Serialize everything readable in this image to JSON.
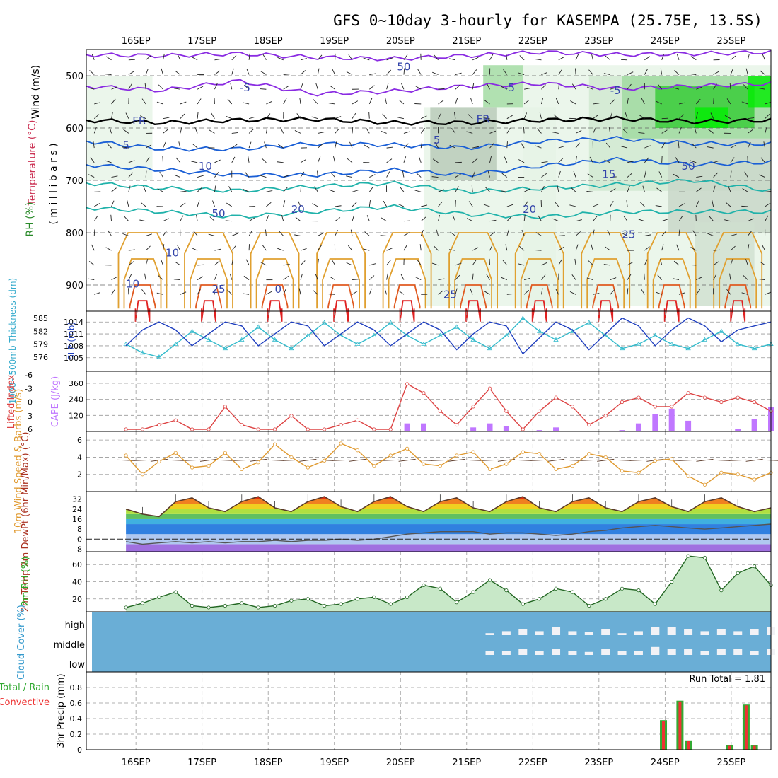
{
  "title": "GFS 0~10day 3-hourly for KASEMPA (25.75E, 13.5S)",
  "dates": [
    "16SEP",
    "17SEP",
    "18SEP",
    "19SEP",
    "20SEP",
    "21SEP",
    "22SEP",
    "23SEP",
    "24SEP",
    "25SEP"
  ],
  "colors": {
    "rh_light": "#e6f4e6",
    "rh_mid": "#9ed99e",
    "rh_strong": "#33cc33",
    "rh_max": "#00ee00",
    "temp_cold": "#8a2be2",
    "temp_blue": "#1a5fd6",
    "temp_teal": "#20b2aa",
    "temp_warm": "#e0a030",
    "temp_hot": "#e02020",
    "slp": "#1f3fbf",
    "thickness": "#33bbcc",
    "cape": "#c077ff",
    "li": "#dd4444",
    "wind": "#e09a30",
    "cloud": "#6aaed6",
    "precip_total": "#33aa33",
    "precip_conv": "#ee3333"
  },
  "chart_data": [
    {
      "type": "heatmap",
      "panel": "upper-air",
      "labels": {
        "wind": "Wind (m/s)",
        "temperature": "Temperature (°C)",
        "rh": "RH (%)",
        "yunit": "( m i l l i b a r s )"
      },
      "y_ticks": [
        500,
        600,
        700,
        800,
        900
      ],
      "ylim": [
        450,
        950
      ],
      "contour_labels": [
        "-5",
        "-5",
        "-5",
        "FR",
        "FR",
        "5",
        "5",
        "10",
        "15",
        "20",
        "20",
        "25",
        "25",
        "25",
        "0",
        "10",
        "10",
        "50",
        "50",
        "50"
      ],
      "temperature_levels": [
        {
          "value": -10,
          "y_mb": [
            460,
            462,
            458,
            465,
            468,
            462,
            455,
            460,
            458,
            455
          ]
        },
        {
          "value": -5,
          "y_mb": [
            520,
            528,
            510,
            535,
            530,
            520,
            515,
            525,
            520,
            515
          ]
        },
        {
          "value": 0,
          "y_mb": [
            585,
            590,
            585,
            583,
            590,
            590,
            585,
            582,
            588,
            585
          ]
        },
        {
          "value": 5,
          "y_mb": [
            625,
            640,
            640,
            630,
            632,
            638,
            625,
            620,
            630,
            630
          ]
        },
        {
          "value": 10,
          "y_mb": [
            670,
            680,
            690,
            690,
            680,
            690,
            672,
            660,
            670,
            665
          ]
        },
        {
          "value": 15,
          "y_mb": [
            705,
            715,
            720,
            712,
            705,
            722,
            715,
            708,
            700,
            720
          ]
        },
        {
          "value": 20,
          "y_mb": [
            752,
            760,
            770,
            760,
            750,
            765,
            770,
            760,
            760,
            760
          ]
        }
      ]
    },
    {
      "type": "line",
      "panel": "slp-thickness",
      "ylabel_left": "1000~500mb Thickness (dm)",
      "ylabel_right": "SLP (mb)",
      "thickness_ticks": [
        576,
        579,
        582,
        585
      ],
      "slp_ticks": [
        1005,
        1008,
        1011,
        1014
      ],
      "x_days": [
        0,
        0.25,
        0.5,
        0.75,
        1,
        1.25,
        1.5,
        1.75,
        2,
        2.25,
        2.5,
        2.75,
        3,
        3.25,
        3.5,
        3.75,
        4,
        4.25,
        4.5,
        4.75,
        5,
        5.25,
        5.5,
        5.75,
        6,
        6.25,
        6.5,
        6.75,
        7,
        7.25,
        7.5,
        7.75,
        8,
        8.25,
        8.5,
        8.75,
        9,
        9.25,
        9.5,
        9.75
      ],
      "series": [
        {
          "name": "SLP (mb)",
          "values": [
            1008,
            1012,
            1014,
            1012,
            1008,
            1011,
            1014,
            1013,
            1008,
            1011,
            1014,
            1013,
            1008,
            1011,
            1014,
            1012,
            1008,
            1011,
            1014,
            1012,
            1007,
            1011,
            1014,
            1013,
            1006,
            1010,
            1014,
            1012,
            1007,
            1011,
            1015,
            1013,
            1008,
            1012,
            1015,
            1013,
            1009,
            1012,
            1013,
            1014
          ]
        },
        {
          "name": "1000~500mb Thickness (dm)",
          "values": [
            579,
            577,
            576,
            579,
            582,
            580,
            578,
            580,
            583,
            580,
            578,
            581,
            584,
            581,
            579,
            581,
            584,
            581,
            579,
            581,
            583,
            580,
            578,
            581,
            585,
            582,
            580,
            582,
            584,
            581,
            578,
            579,
            581,
            579,
            578,
            580,
            582,
            579,
            578,
            579
          ]
        }
      ]
    },
    {
      "type": "bar",
      "panel": "cape-li",
      "ylabel_left": "Lifted Index",
      "ylabel_right": "CAPE (J/kg)",
      "li_ticks": [
        "-6",
        "-3",
        "0",
        "3",
        "6"
      ],
      "cape_ticks": [
        120,
        240,
        360
      ],
      "x_days": [
        0,
        0.25,
        0.5,
        0.75,
        1,
        1.25,
        1.5,
        1.75,
        2,
        2.25,
        2.5,
        2.75,
        3,
        3.25,
        3.5,
        3.75,
        4,
        4.25,
        4.5,
        4.75,
        5,
        5.25,
        5.5,
        5.75,
        6,
        6.25,
        6.5,
        6.75,
        7,
        7.25,
        7.5,
        7.75,
        8,
        8.25,
        8.5,
        8.75,
        9,
        9.25,
        9.5,
        9.75
      ],
      "series": [
        {
          "name": "CAPE (J/kg)",
          "values": [
            0,
            0,
            0,
            0,
            0,
            0,
            0,
            0,
            0,
            0,
            0,
            0,
            0,
            0,
            0,
            0,
            0,
            60,
            60,
            0,
            0,
            30,
            60,
            40,
            0,
            10,
            30,
            0,
            0,
            0,
            10,
            60,
            130,
            170,
            80,
            0,
            0,
            20,
            90,
            180
          ]
        },
        {
          "name": "Lifted Index",
          "values": [
            6,
            6,
            5,
            4,
            6,
            6,
            1,
            5,
            6,
            6,
            3,
            6,
            6,
            5,
            4,
            6,
            6,
            -4,
            -2,
            2,
            5,
            1,
            -3,
            2,
            6,
            2,
            -1,
            1,
            5,
            3,
            0,
            -1,
            1,
            1,
            -2,
            -1,
            0,
            -1,
            0,
            2
          ]
        }
      ]
    },
    {
      "type": "line",
      "panel": "wind10m",
      "ylabel": "10m Wind Speed & Barbs (m/s)",
      "ticks": [
        2,
        4,
        6
      ],
      "ylim": [
        0,
        7
      ],
      "x_days": [
        0,
        0.25,
        0.5,
        0.75,
        1,
        1.25,
        1.5,
        1.75,
        2,
        2.25,
        2.5,
        2.75,
        3,
        3.25,
        3.5,
        3.75,
        4,
        4.25,
        4.5,
        4.75,
        5,
        5.25,
        5.5,
        5.75,
        6,
        6.25,
        6.5,
        6.75,
        7,
        7.25,
        7.5,
        7.75,
        8,
        8.25,
        8.5,
        8.75,
        9,
        9.25,
        9.5,
        9.75
      ],
      "series": [
        {
          "name": "10m Wind Speed",
          "values": [
            4.2,
            2.0,
            3.5,
            4.5,
            2.8,
            3.0,
            4.5,
            2.6,
            3.4,
            5.5,
            4.0,
            2.8,
            3.6,
            5.6,
            4.8,
            3.0,
            4.2,
            5.0,
            3.2,
            3.0,
            4.2,
            4.6,
            2.6,
            3.2,
            4.6,
            4.4,
            2.6,
            3.0,
            4.4,
            4.0,
            2.4,
            2.2,
            3.6,
            3.8,
            1.8,
            0.8,
            2.2,
            2.0,
            1.4,
            2.2
          ]
        }
      ]
    },
    {
      "type": "area",
      "panel": "temp2m",
      "ylabel": "2m Temp 2m DewPt (6hr Min/Max) (°C)",
      "ticks": [
        -8,
        0,
        8,
        16,
        24,
        32
      ],
      "ylim": [
        -10,
        38
      ],
      "x_days": [
        0,
        0.25,
        0.5,
        0.75,
        1,
        1.25,
        1.5,
        1.75,
        2,
        2.25,
        2.5,
        2.75,
        3,
        3.25,
        3.5,
        3.75,
        4,
        4.25,
        4.5,
        4.75,
        5,
        5.25,
        5.5,
        5.75,
        6,
        6.25,
        6.5,
        6.75,
        7,
        7.25,
        7.5,
        7.75,
        8,
        8.25,
        8.5,
        8.75,
        9,
        9.25,
        9.5,
        9.75
      ],
      "series": [
        {
          "name": "2m Temp",
          "values": [
            24,
            20,
            18,
            30,
            33,
            25,
            22,
            30,
            34,
            25,
            22,
            30,
            34,
            26,
            22,
            30,
            34,
            26,
            22,
            30,
            33,
            25,
            22,
            30,
            34,
            25,
            22,
            30,
            33,
            25,
            22,
            30,
            33,
            26,
            22,
            30,
            33,
            26,
            22,
            25
          ]
        },
        {
          "name": "2m DewPt",
          "values": [
            -2,
            -4,
            -3,
            -2,
            -3,
            -2,
            -3,
            -2,
            -2,
            -1,
            -2,
            -1,
            -1,
            0,
            -1,
            0,
            2,
            4,
            5,
            6,
            6,
            6,
            4,
            5,
            5,
            4,
            3,
            4,
            6,
            7,
            9,
            10,
            11,
            10,
            9,
            8,
            9,
            10,
            11,
            12
          ]
        }
      ]
    },
    {
      "type": "area",
      "panel": "rh2m",
      "ylabel": "2m RH (%)",
      "ticks": [
        20,
        40,
        60
      ],
      "ylim": [
        5,
        75
      ],
      "x_days": [
        0,
        0.25,
        0.5,
        0.75,
        1,
        1.25,
        1.5,
        1.75,
        2,
        2.25,
        2.5,
        2.75,
        3,
        3.25,
        3.5,
        3.75,
        4,
        4.25,
        4.5,
        4.75,
        5,
        5.25,
        5.5,
        5.75,
        6,
        6.25,
        6.5,
        6.75,
        7,
        7.25,
        7.5,
        7.75,
        8,
        8.25,
        8.5,
        8.75,
        9,
        9.25,
        9.5,
        9.75
      ],
      "series": [
        {
          "name": "2m RH",
          "values": [
            10,
            15,
            22,
            28,
            12,
            10,
            12,
            15,
            10,
            12,
            18,
            20,
            12,
            14,
            20,
            22,
            14,
            22,
            36,
            32,
            16,
            28,
            42,
            30,
            14,
            20,
            32,
            28,
            12,
            20,
            32,
            30,
            14,
            40,
            70,
            68,
            30,
            50,
            58,
            36
          ]
        }
      ]
    },
    {
      "type": "heatmap",
      "panel": "cloud",
      "ylabel": "Cloud Cover (%)",
      "levels": [
        "high",
        "middle",
        "low"
      ],
      "x_days": [
        0,
        0.25,
        0.5,
        0.75,
        1,
        1.25,
        1.5,
        1.75,
        2,
        2.25,
        2.5,
        2.75,
        3,
        3.25,
        3.5,
        3.75,
        4,
        4.25,
        4.5,
        4.75,
        5,
        5.25,
        5.5,
        5.75,
        6,
        6.25,
        6.5,
        6.75,
        7,
        7.25,
        7.5,
        7.75,
        8,
        8.25,
        8.5,
        8.75,
        9,
        9.25,
        9.5,
        9.75
      ],
      "series": [
        {
          "name": "high",
          "values": [
            0,
            0,
            0,
            0,
            0,
            0,
            0,
            0,
            0,
            0,
            0,
            0,
            0,
            0,
            0,
            0,
            0,
            0,
            0,
            0,
            0,
            0,
            10,
            20,
            30,
            20,
            40,
            20,
            15,
            30,
            10,
            20,
            40,
            40,
            30,
            20,
            30,
            20,
            30,
            40
          ]
        },
        {
          "name": "middle",
          "values": [
            0,
            0,
            0,
            0,
            0,
            0,
            0,
            0,
            0,
            0,
            0,
            0,
            0,
            0,
            0,
            0,
            0,
            0,
            0,
            0,
            0,
            0,
            20,
            20,
            30,
            20,
            30,
            20,
            15,
            30,
            20,
            20,
            40,
            30,
            30,
            20,
            30,
            30,
            20,
            30
          ]
        },
        {
          "name": "low",
          "values": [
            0,
            0,
            0,
            0,
            0,
            0,
            0,
            0,
            0,
            0,
            0,
            0,
            0,
            0,
            0,
            0,
            0,
            0,
            0,
            0,
            0,
            0,
            0,
            0,
            0,
            0,
            0,
            0,
            0,
            0,
            0,
            0,
            0,
            0,
            0,
            0,
            0,
            0,
            0,
            0
          ]
        }
      ]
    },
    {
      "type": "bar",
      "panel": "precip",
      "ylabel_lines": [
        "Total / Rain",
        "Convective"
      ],
      "ylabel_unit": "3hr Precip (mm)",
      "ticks": [
        0,
        0.2,
        0.4,
        0.6,
        0.8
      ],
      "ylim": [
        0,
        1
      ],
      "run_total": "Run Total = 1.81",
      "x_days": [
        8.125,
        8.375,
        8.5,
        9.125,
        9.375,
        9.5
      ],
      "series": [
        {
          "name": "Total / Rain",
          "values": [
            0.38,
            0.63,
            0.12,
            0.06,
            0.58,
            0.06
          ]
        },
        {
          "name": "Convective",
          "values": [
            0.37,
            0.62,
            0.11,
            0.05,
            0.57,
            0.05
          ]
        }
      ]
    }
  ]
}
